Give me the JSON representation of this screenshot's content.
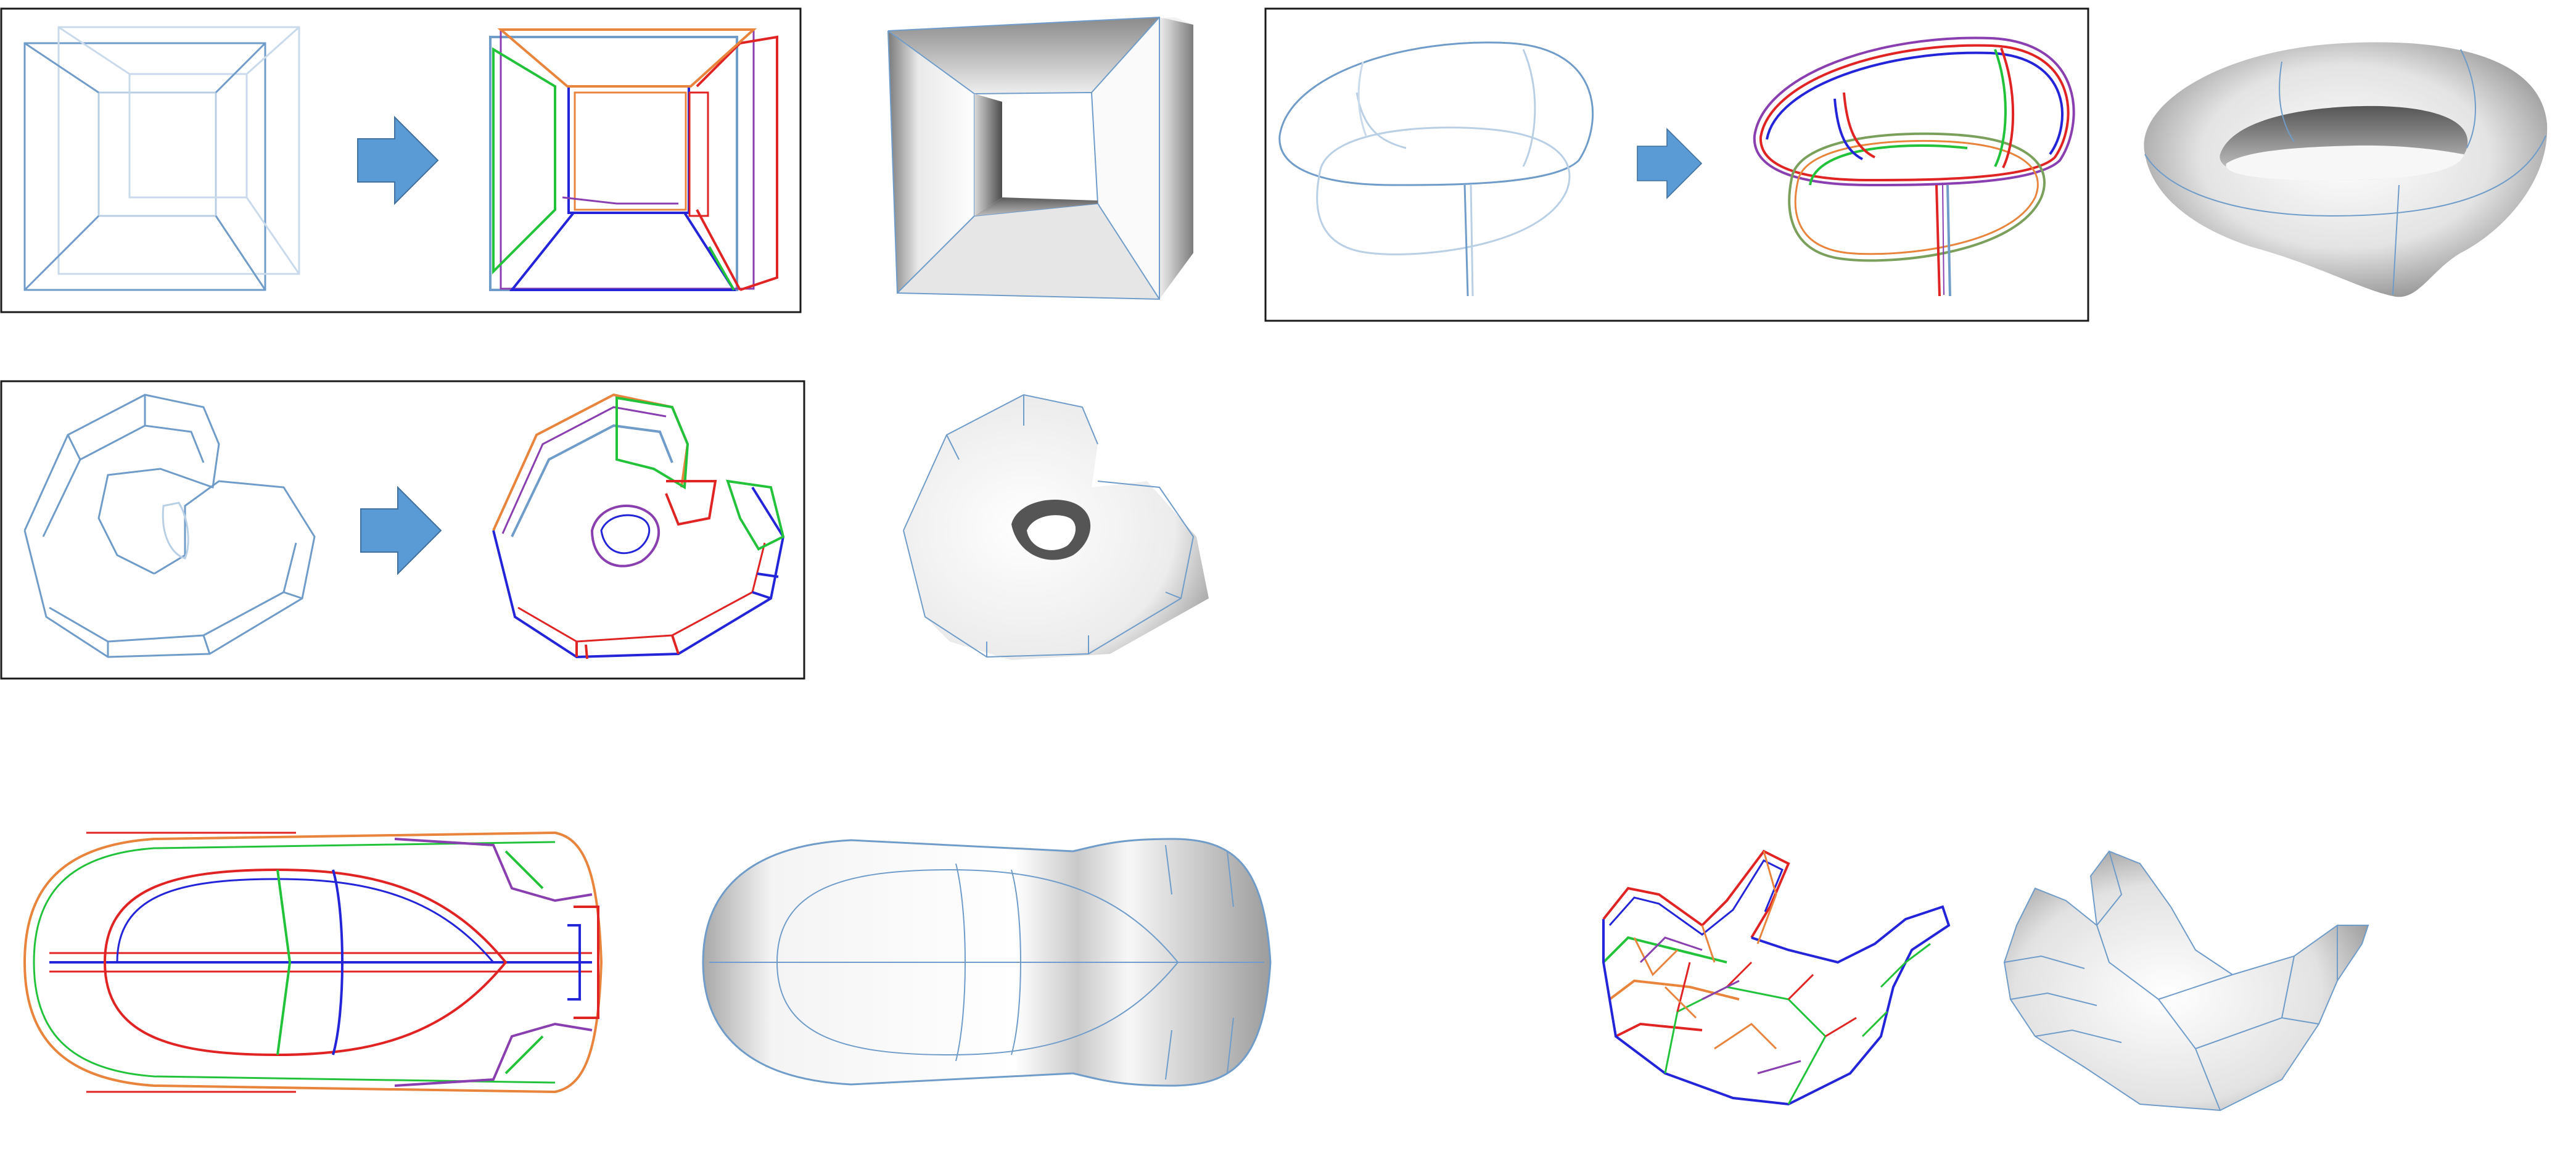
{
  "figure": {
    "rows": [
      {
        "name": "row-1",
        "examples": [
          {
            "name": "hypercube",
            "panels": [
              "sketch-input",
              "colored-curve-network",
              "shaded-surface"
            ]
          },
          {
            "name": "twisted-ring",
            "panels": [
              "sketch-input",
              "colored-curve-network",
              "shaded-surface"
            ]
          }
        ]
      },
      {
        "name": "row-2",
        "examples": [
          {
            "name": "spiral",
            "panels": [
              "sketch-input",
              "colored-curve-network",
              "shaded-surface"
            ]
          }
        ]
      },
      {
        "name": "row-3",
        "examples": [
          {
            "name": "car",
            "panels": [
              "colored-curve-network",
              "shaded-surface"
            ]
          },
          {
            "name": "hand",
            "panels": [
              "colored-curve-network",
              "shaded-surface"
            ]
          }
        ]
      }
    ],
    "colors": {
      "sketch": "#6f9cc9",
      "sketch-light": "#b9cfe4",
      "arrow": "#5b9bd5",
      "frame": "#1a1a1a",
      "curve-red": "#e02424",
      "curve-green": "#22c33a",
      "curve-blue": "#2424d8",
      "curve-orange": "#e8843c",
      "curve-purple": "#8a3fb0",
      "shade-dark": "#6d6d6d",
      "shade-light": "#fafafa"
    }
  }
}
